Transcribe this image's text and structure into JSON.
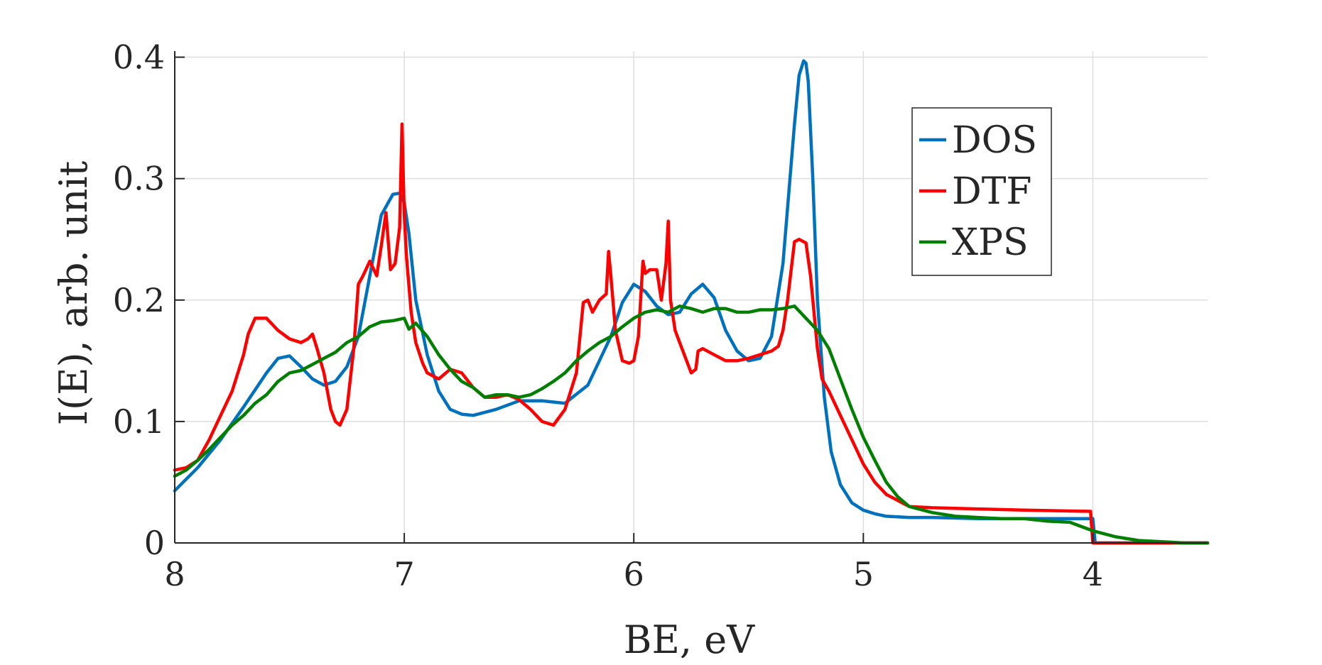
{
  "chart_data": {
    "type": "line",
    "title": "",
    "xlabel": "BE, eV",
    "ylabel": "I(E), arb. unit",
    "xlim": [
      8,
      3.5
    ],
    "ylim": [
      0,
      0.405
    ],
    "x_reversed": true,
    "xticks": [
      8,
      7,
      6,
      5,
      4
    ],
    "xtick_labels": [
      "8",
      "7",
      "6",
      "5",
      "4"
    ],
    "yticks": [
      0,
      0.1,
      0.2,
      0.3,
      0.4
    ],
    "ytick_labels": [
      "0",
      "0.1",
      "0.2",
      "0.3",
      "0.4"
    ],
    "grid": true,
    "legend_position": "top-right",
    "series": [
      {
        "name": "DOS",
        "color": "#0072BD",
        "x": [
          8.0,
          7.9,
          7.8,
          7.7,
          7.6,
          7.55,
          7.5,
          7.45,
          7.4,
          7.35,
          7.3,
          7.25,
          7.2,
          7.15,
          7.1,
          7.05,
          7.02,
          7.0,
          6.98,
          6.95,
          6.9,
          6.85,
          6.8,
          6.75,
          6.7,
          6.6,
          6.5,
          6.4,
          6.3,
          6.2,
          6.1,
          6.05,
          6.0,
          5.95,
          5.9,
          5.85,
          5.8,
          5.75,
          5.7,
          5.65,
          5.6,
          5.55,
          5.5,
          5.45,
          5.4,
          5.35,
          5.3,
          5.28,
          5.26,
          5.25,
          5.24,
          5.22,
          5.2,
          5.17,
          5.14,
          5.1,
          5.05,
          5.0,
          4.95,
          4.9,
          4.8,
          4.7,
          4.5,
          4.2,
          4.0,
          3.99,
          3.9,
          3.8,
          3.7,
          3.6,
          3.5
        ],
        "values": [
          0.043,
          0.062,
          0.085,
          0.112,
          0.14,
          0.152,
          0.154,
          0.145,
          0.135,
          0.13,
          0.133,
          0.145,
          0.17,
          0.22,
          0.27,
          0.287,
          0.288,
          0.28,
          0.255,
          0.2,
          0.155,
          0.125,
          0.11,
          0.106,
          0.105,
          0.11,
          0.117,
          0.117,
          0.115,
          0.13,
          0.17,
          0.198,
          0.213,
          0.207,
          0.195,
          0.188,
          0.19,
          0.205,
          0.213,
          0.202,
          0.175,
          0.158,
          0.15,
          0.152,
          0.17,
          0.23,
          0.345,
          0.385,
          0.397,
          0.395,
          0.38,
          0.3,
          0.2,
          0.12,
          0.075,
          0.048,
          0.033,
          0.027,
          0.024,
          0.022,
          0.021,
          0.021,
          0.02,
          0.02,
          0.02,
          0.0,
          0.0,
          0.0,
          0.0,
          0.0,
          0.0
        ]
      },
      {
        "name": "DTF",
        "color": "#FF0000",
        "x": [
          8.0,
          7.95,
          7.9,
          7.85,
          7.8,
          7.75,
          7.7,
          7.68,
          7.65,
          7.6,
          7.55,
          7.5,
          7.45,
          7.42,
          7.4,
          7.38,
          7.35,
          7.32,
          7.3,
          7.28,
          7.25,
          7.22,
          7.2,
          7.18,
          7.15,
          7.12,
          7.1,
          7.08,
          7.06,
          7.04,
          7.02,
          7.01,
          7.0,
          6.99,
          6.97,
          6.95,
          6.92,
          6.9,
          6.85,
          6.8,
          6.75,
          6.7,
          6.65,
          6.6,
          6.55,
          6.5,
          6.45,
          6.4,
          6.35,
          6.3,
          6.25,
          6.22,
          6.2,
          6.18,
          6.15,
          6.12,
          6.11,
          6.1,
          6.08,
          6.05,
          6.02,
          6.0,
          5.98,
          5.96,
          5.95,
          5.93,
          5.9,
          5.88,
          5.86,
          5.85,
          5.84,
          5.82,
          5.8,
          5.75,
          5.73,
          5.72,
          5.7,
          5.65,
          5.6,
          5.55,
          5.5,
          5.45,
          5.4,
          5.37,
          5.35,
          5.33,
          5.3,
          5.28,
          5.25,
          5.23,
          5.2,
          5.18,
          5.15,
          5.1,
          5.05,
          5.0,
          4.95,
          4.9,
          4.85,
          4.8,
          4.7,
          4.5,
          4.3,
          4.01,
          4.0,
          3.9,
          3.8,
          3.7,
          3.6,
          3.5
        ],
        "values": [
          0.06,
          0.062,
          0.068,
          0.085,
          0.105,
          0.125,
          0.155,
          0.172,
          0.185,
          0.185,
          0.175,
          0.168,
          0.165,
          0.168,
          0.172,
          0.16,
          0.14,
          0.11,
          0.1,
          0.097,
          0.11,
          0.16,
          0.213,
          0.22,
          0.232,
          0.22,
          0.245,
          0.272,
          0.225,
          0.23,
          0.26,
          0.345,
          0.27,
          0.235,
          0.19,
          0.165,
          0.148,
          0.14,
          0.135,
          0.143,
          0.14,
          0.128,
          0.12,
          0.12,
          0.122,
          0.118,
          0.11,
          0.1,
          0.097,
          0.11,
          0.14,
          0.198,
          0.2,
          0.19,
          0.2,
          0.205,
          0.24,
          0.22,
          0.175,
          0.15,
          0.148,
          0.15,
          0.17,
          0.232,
          0.222,
          0.225,
          0.225,
          0.2,
          0.23,
          0.265,
          0.2,
          0.175,
          0.165,
          0.14,
          0.143,
          0.158,
          0.16,
          0.155,
          0.15,
          0.15,
          0.152,
          0.155,
          0.158,
          0.162,
          0.175,
          0.2,
          0.248,
          0.25,
          0.247,
          0.22,
          0.16,
          0.135,
          0.125,
          0.105,
          0.085,
          0.065,
          0.05,
          0.04,
          0.035,
          0.03,
          0.029,
          0.028,
          0.027,
          0.026,
          0.0,
          0.0,
          0.0,
          0.0,
          0.0,
          0.0
        ]
      },
      {
        "name": "XPS",
        "color": "#007F00",
        "x": [
          8.0,
          7.95,
          7.9,
          7.85,
          7.8,
          7.75,
          7.7,
          7.65,
          7.6,
          7.55,
          7.5,
          7.45,
          7.4,
          7.35,
          7.3,
          7.25,
          7.2,
          7.15,
          7.1,
          7.05,
          7.0,
          6.98,
          6.95,
          6.9,
          6.85,
          6.8,
          6.75,
          6.7,
          6.65,
          6.6,
          6.55,
          6.5,
          6.45,
          6.4,
          6.35,
          6.3,
          6.25,
          6.2,
          6.15,
          6.1,
          6.05,
          6.0,
          5.95,
          5.9,
          5.85,
          5.8,
          5.75,
          5.7,
          5.65,
          5.6,
          5.55,
          5.5,
          5.45,
          5.4,
          5.35,
          5.3,
          5.25,
          5.2,
          5.15,
          5.1,
          5.05,
          5.0,
          4.95,
          4.9,
          4.85,
          4.8,
          4.7,
          4.6,
          4.5,
          4.4,
          4.3,
          4.2,
          4.1,
          4.0,
          3.9,
          3.8,
          3.7,
          3.6,
          3.5
        ],
        "values": [
          0.055,
          0.06,
          0.068,
          0.077,
          0.087,
          0.097,
          0.105,
          0.115,
          0.122,
          0.133,
          0.14,
          0.142,
          0.147,
          0.152,
          0.157,
          0.165,
          0.17,
          0.178,
          0.182,
          0.183,
          0.185,
          0.176,
          0.181,
          0.17,
          0.155,
          0.143,
          0.133,
          0.128,
          0.12,
          0.122,
          0.122,
          0.12,
          0.122,
          0.127,
          0.133,
          0.14,
          0.15,
          0.158,
          0.165,
          0.17,
          0.178,
          0.185,
          0.19,
          0.192,
          0.19,
          0.195,
          0.193,
          0.19,
          0.193,
          0.193,
          0.19,
          0.19,
          0.192,
          0.192,
          0.193,
          0.195,
          0.185,
          0.175,
          0.16,
          0.135,
          0.11,
          0.087,
          0.068,
          0.05,
          0.038,
          0.03,
          0.025,
          0.022,
          0.021,
          0.02,
          0.02,
          0.018,
          0.017,
          0.01,
          0.005,
          0.002,
          0.001,
          0.0,
          0.0
        ]
      }
    ]
  }
}
